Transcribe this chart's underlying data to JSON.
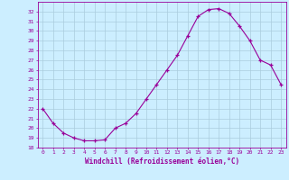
{
  "x": [
    0,
    1,
    2,
    3,
    4,
    5,
    6,
    7,
    8,
    9,
    10,
    11,
    12,
    13,
    14,
    15,
    16,
    17,
    18,
    19,
    20,
    21,
    22,
    23
  ],
  "y": [
    22.0,
    20.5,
    19.5,
    19.0,
    18.7,
    18.7,
    18.8,
    20.0,
    20.5,
    21.5,
    23.0,
    24.5,
    26.0,
    27.5,
    29.5,
    31.5,
    32.2,
    32.3,
    31.8,
    30.5,
    29.0,
    27.0,
    26.5,
    24.5
  ],
  "line_color": "#990099",
  "marker_color": "#990099",
  "bg_color": "#cceeff",
  "grid_color": "#aaccdd",
  "xlabel": "Windchill (Refroidissement éolien,°C)",
  "xlabel_color": "#990099",
  "tick_color": "#990099",
  "ylim": [
    18,
    33
  ],
  "yticks": [
    18,
    19,
    20,
    21,
    22,
    23,
    24,
    25,
    26,
    27,
    28,
    29,
    30,
    31,
    32
  ],
  "xticks": [
    0,
    1,
    2,
    3,
    4,
    5,
    6,
    7,
    8,
    9,
    10,
    11,
    12,
    13,
    14,
    15,
    16,
    17,
    18,
    19,
    20,
    21,
    22,
    23
  ]
}
